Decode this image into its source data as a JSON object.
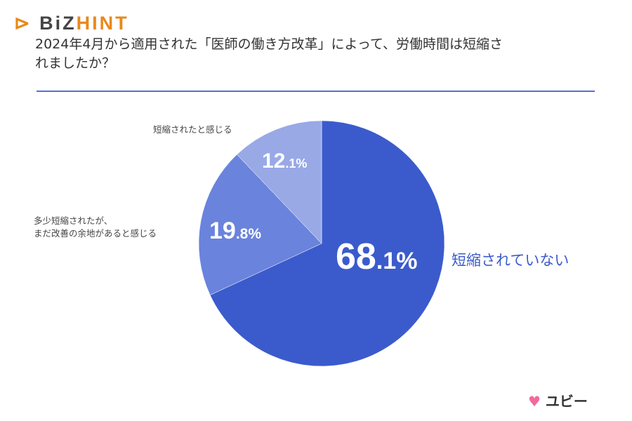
{
  "brand": {
    "logo_part1": "BiZ",
    "logo_part2": "HINT",
    "footer_logo": "ユビー",
    "accent": "#e8891c"
  },
  "chart_data": {
    "type": "pie",
    "title": "2024年4月から適用された「医師の働き方改革」によって、労働時間は短縮されましたか？",
    "slices": [
      {
        "label": "短縮されていない",
        "value": 68.1,
        "display_main": "68",
        "display_dec": ".1%",
        "color": "#3b5bcc"
      },
      {
        "label": "多少短縮されたが、まだ改善の余地があると感じる",
        "label_line1": "多少短縮されたが、",
        "label_line2": "まだ改善の余地があると感じる",
        "value": 19.8,
        "display_main": "19",
        "display_dec": ".8%",
        "color": "#6a83dc"
      },
      {
        "label": "短縮されたと感じる",
        "value": 12.1,
        "display_main": "12",
        "display_dec": ".1%",
        "color": "#98a9e6"
      }
    ],
    "start_angle": "top",
    "direction": "clockwise"
  }
}
